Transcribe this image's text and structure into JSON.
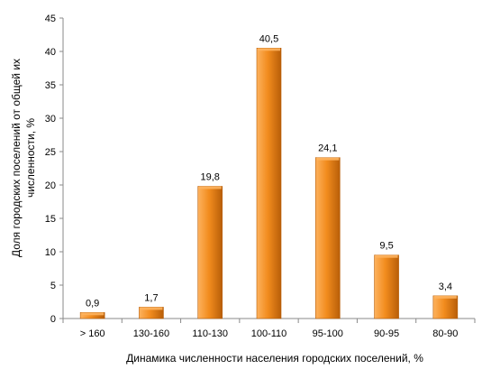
{
  "colors": {
    "bar_light": "#FDB25E",
    "bar_mid": "#F28C1E",
    "bar_dark": "#B85E08",
    "axis": "#8A8A8A"
  },
  "chart_data": {
    "type": "bar",
    "categories": [
      "> 160",
      "130-160",
      "110-130",
      "100-110",
      "95-100",
      "90-95",
      "80-90"
    ],
    "values": [
      0.9,
      1.7,
      19.8,
      40.5,
      24.1,
      9.5,
      3.4
    ],
    "value_labels": [
      "0,9",
      "1,7",
      "19,8",
      "40,5",
      "24,1",
      "9,5",
      "3,4"
    ],
    "yticks": [
      "0",
      "5",
      "10",
      "15",
      "20",
      "25",
      "30",
      "35",
      "40",
      "45"
    ],
    "ylim": [
      0,
      45
    ],
    "grid": false,
    "legend": "none",
    "ylabel_line1": "Доля городских поселений от общей их",
    "ylabel_line2": "численности, %",
    "xlabel": "Динамика численности  населения городских  поселений, %"
  }
}
